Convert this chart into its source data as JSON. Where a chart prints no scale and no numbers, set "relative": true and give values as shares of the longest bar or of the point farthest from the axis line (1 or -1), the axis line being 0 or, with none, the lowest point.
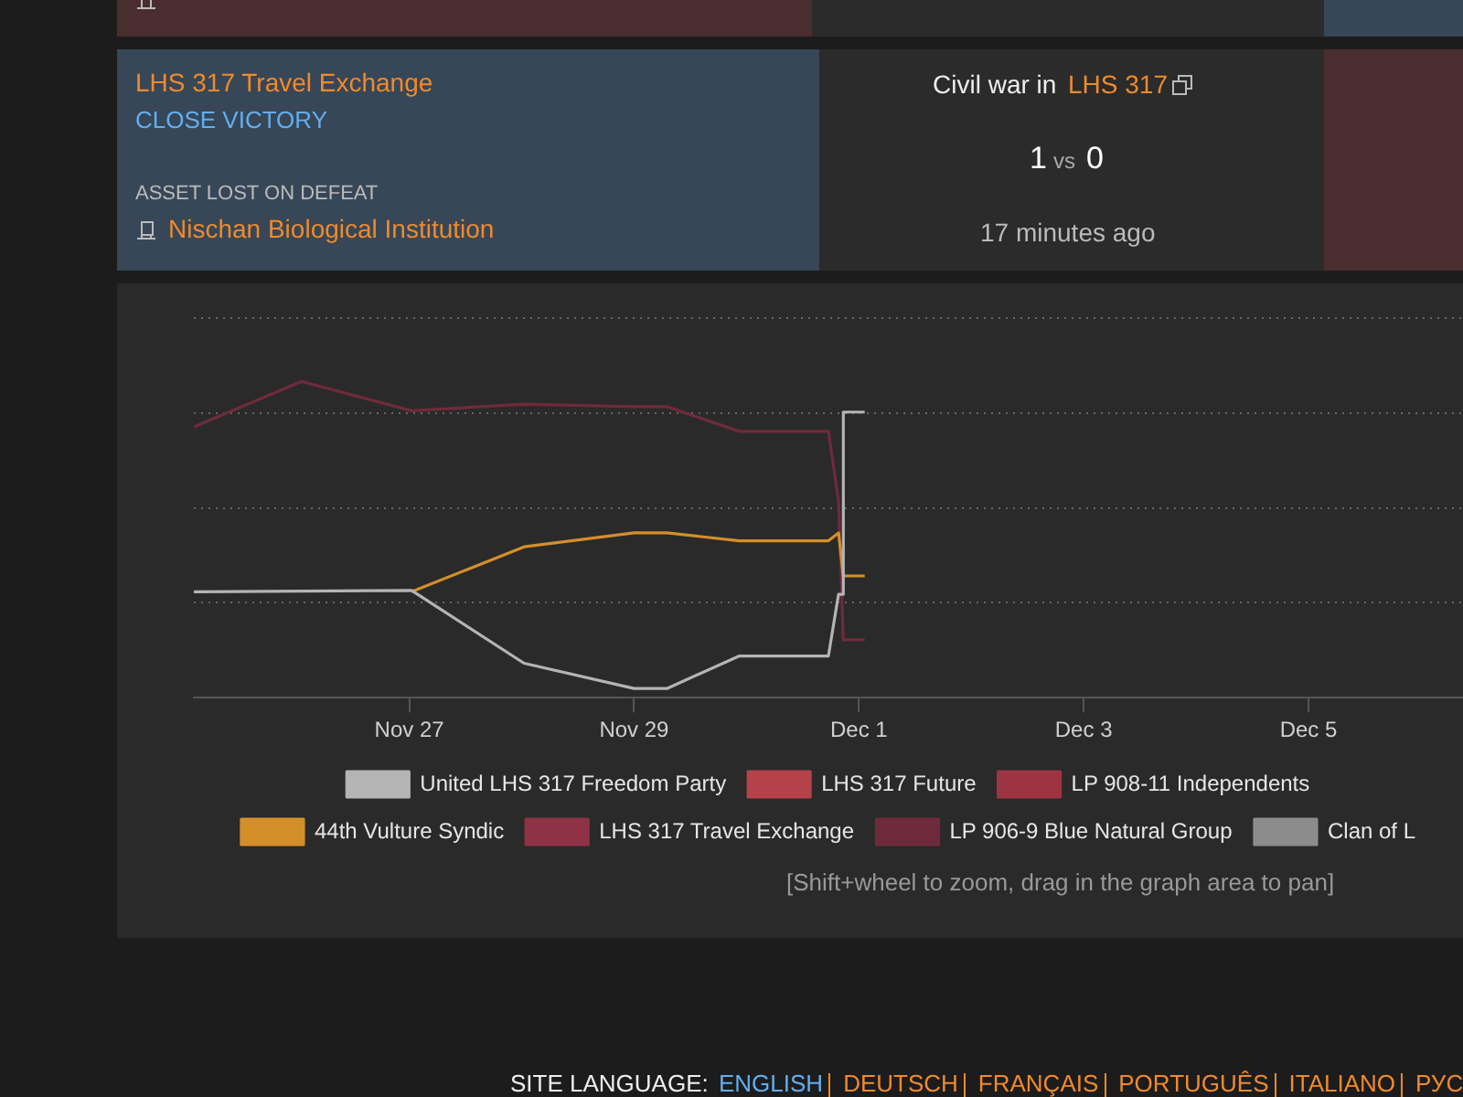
{
  "chart_data": {
    "type": "line",
    "relative": true,
    "grid": "y",
    "legend": "bottom",
    "marker": "none",
    "line_style": "solid",
    "xlim": [
      "--11-25T02:00",
      "--12-06T09:00"
    ],
    "xticks": [
      {
        "value": "--11-27",
        "label": "Nov 27"
      },
      {
        "value": "--11-29",
        "label": "Nov 29"
      },
      {
        "value": "--12-01",
        "label": "Dec 1"
      },
      {
        "value": "--12-03",
        "label": "Dec 3"
      },
      {
        "value": "--12-05",
        "label": "Dec 5"
      }
    ],
    "series": [
      {
        "name": "United LHS 317 Freedom Party",
        "color": "#b4b4b4",
        "x": [
          "--11-25T02:00",
          "--11-26T01:00",
          "--11-27T00:30",
          "--11-28T00:30",
          "--11-29T00:00",
          "--11-29T07:00",
          "--11-29T22:30",
          "--11-30T17:30",
          "--11-30T19:40",
          "--11-30T20:40",
          "--11-30T20:41",
          "--12-01T01:15"
        ],
        "values": [
          0.335,
          0.337,
          0.339,
          0.109,
          0.029,
          0.029,
          0.132,
          0.132,
          0.327,
          0.327,
          0.903,
          0.903
        ]
      },
      {
        "name": "LHS 317 Future",
        "color": "#b5424a",
        "values": [
          null
        ]
      },
      {
        "name": "LP 908-11 Independents",
        "color": "#9e3442",
        "values": [
          null
        ]
      },
      {
        "name": "44th Vulture Syndic",
        "color": "#d48f2a",
        "x": [
          "--11-27T00:30",
          "--11-28T00:30",
          "--11-29T00:00",
          "--11-29T07:00",
          "--11-29T22:30",
          "--11-30T17:30",
          "--11-30T19:40",
          "--11-30T20:40",
          "--12-01T01:15"
        ],
        "values": [
          0.335,
          0.477,
          0.521,
          0.521,
          0.496,
          0.496,
          0.521,
          0.385,
          0.385
        ]
      },
      {
        "name": "LHS 317 Travel Exchange",
        "color": "#8e3346",
        "values": [
          null
        ]
      },
      {
        "name": "LP 906-9 Blue Natural Group",
        "color": "#6f2b3b",
        "x": [
          "--11-25T02:00",
          "--11-26T01:00",
          "--11-27T00:30",
          "--11-28T00:30",
          "--11-29T00:00",
          "--11-29T07:00",
          "--11-29T22:30",
          "--11-30T17:30",
          "--11-30T19:40",
          "--11-30T20:40",
          "--12-01T01:15"
        ],
        "values": [
          0.856,
          1.0,
          0.907,
          0.928,
          0.92,
          0.92,
          0.842,
          0.842,
          0.621,
          0.183,
          0.183
        ]
      },
      {
        "name": "Clan of L",
        "color": "#8c8c8c",
        "values": [
          null
        ]
      }
    ],
    "annotations": [
      "LHS 317 Travel Exchange",
      "CLOSE VICTORY",
      "ASSET LOST ON DEFEAT",
      "Nischan Biological Institution",
      "Civil war in",
      "LHS 317",
      "1",
      "vs",
      "0",
      "17 minutes ago",
      "[Shift+wheel to zoom, drag in the graph area to pan]",
      "SITE LANGUAGE:",
      "ENGLISH",
      "DEUTSCH",
      "FRANÇAIS",
      "PORTUGUÊS",
      "ITALIANO",
      "РУС"
    ]
  }
}
